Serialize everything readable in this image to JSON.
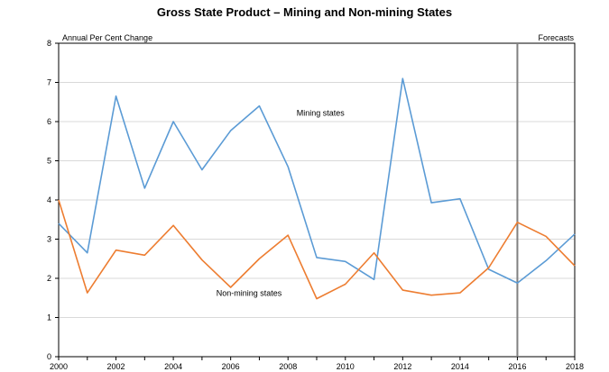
{
  "chart_data": {
    "type": "line",
    "title": "Gross State Product – Mining and Non-mining States",
    "ylabel": "Annual Per Cent Change",
    "forecast_label": "Forecasts",
    "forecast_from": 2016,
    "xlim": [
      2000,
      2018
    ],
    "ylim": [
      0,
      8
    ],
    "x_ticks": [
      "2000",
      "2002",
      "2004",
      "2006",
      "2008",
      "2010",
      "2012",
      "2014",
      "2016",
      "2018"
    ],
    "y_ticks": [
      "0",
      "1",
      "2",
      "3",
      "4",
      "5",
      "6",
      "7",
      "8"
    ],
    "grid": "horizontal",
    "x": [
      2000,
      2001,
      2002,
      2003,
      2004,
      2005,
      2006,
      2007,
      2008,
      2009,
      2010,
      2011,
      2012,
      2013,
      2014,
      2015,
      2016,
      2017,
      2018
    ],
    "series": [
      {
        "name": "Mining states",
        "color": "#5b9bd5",
        "values": [
          3.4,
          2.65,
          6.65,
          4.3,
          6.0,
          4.77,
          5.77,
          6.4,
          4.85,
          2.53,
          2.43,
          1.97,
          7.1,
          3.93,
          4.03,
          2.23,
          1.88,
          2.45,
          3.13
        ]
      },
      {
        "name": "Non-mining states",
        "color": "#ed7d31",
        "values": [
          4.0,
          1.63,
          2.72,
          2.59,
          3.35,
          2.47,
          1.77,
          2.5,
          3.1,
          1.48,
          1.85,
          2.65,
          1.7,
          1.57,
          1.63,
          2.27,
          3.43,
          3.07,
          2.32
        ]
      }
    ]
  }
}
